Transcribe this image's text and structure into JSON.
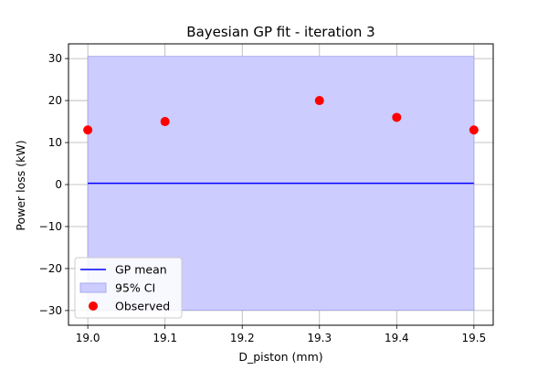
{
  "chart_data": {
    "type": "line",
    "title": "Bayesian GP fit - iteration 3",
    "xlabel": "D_piston (mm)",
    "ylabel": "Power loss (kW)",
    "xlim": [
      18.975,
      19.525
    ],
    "ylim": [
      -33.5,
      33.5
    ],
    "xticks": [
      19.0,
      19.1,
      19.2,
      19.3,
      19.4,
      19.5
    ],
    "xtick_labels": [
      "19.0",
      "19.1",
      "19.2",
      "19.3",
      "19.4",
      "19.5"
    ],
    "yticks": [
      -30,
      -20,
      -10,
      0,
      10,
      20,
      30
    ],
    "ytick_labels": [
      "−30",
      "−20",
      "−10",
      "0",
      "10",
      "20",
      "30"
    ],
    "grid": true,
    "legend_position": "lower-left",
    "series": [
      {
        "name": "GP mean",
        "kind": "line",
        "color": "#0000ff",
        "x": [
          19.0,
          19.5
        ],
        "y": [
          0.3,
          0.3
        ]
      },
      {
        "name": "95% CI",
        "kind": "band",
        "color": "#ccccff",
        "edge_color": "#aaaaee",
        "x": [
          19.0,
          19.5
        ],
        "lower": [
          -29.9,
          -29.9
        ],
        "upper": [
          30.5,
          30.5
        ]
      },
      {
        "name": "Observed",
        "kind": "scatter",
        "color": "#ff0000",
        "x": [
          19.0,
          19.1,
          19.3,
          19.4,
          19.5
        ],
        "y": [
          13,
          15,
          20,
          16,
          13
        ]
      }
    ]
  }
}
